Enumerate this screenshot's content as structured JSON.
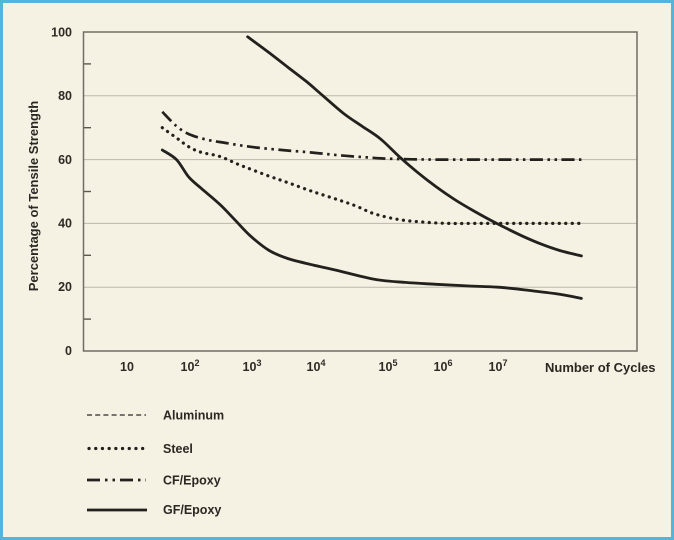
{
  "frame": {
    "border_color": "#57b3d9",
    "background_color": "#f5f1e3",
    "line_color": "#23211d"
  },
  "chart": {
    "y_axis_title": "Percentage of Tensile Strength",
    "x_axis_title": "Number of Cycles",
    "y_ticks": [
      "0",
      "20",
      "40",
      "60",
      "80",
      "100"
    ],
    "x_ticks": [
      {
        "base": "10",
        "sup": ""
      },
      {
        "base": "10",
        "sup": "2"
      },
      {
        "base": "10",
        "sup": "3"
      },
      {
        "base": "10",
        "sup": "4"
      },
      {
        "base": "10",
        "sup": "5"
      },
      {
        "base": "10",
        "sup": "6"
      },
      {
        "base": "10",
        "sup": "7"
      }
    ]
  },
  "legend": {
    "items": [
      {
        "label": "Aluminum",
        "swatch_style": "dashed-thin"
      },
      {
        "label": "Steel",
        "swatch_style": "dotted-bold"
      },
      {
        "label": "CF/Epoxy",
        "swatch_style": "dash-dot-dot"
      },
      {
        "label": "GF/Epoxy",
        "swatch_style": "solid"
      }
    ]
  },
  "chart_data": {
    "type": "line",
    "title": "",
    "xlabel": "Number of Cycles",
    "ylabel": "Percentage of Tensile Strength",
    "x_scale": "log10",
    "xlim_log10": [
      0.296,
      9.25
    ],
    "ylim": [
      0,
      100
    ],
    "x_tick_values": [
      10,
      100,
      1000,
      10000,
      100000,
      1000000,
      10000000
    ],
    "y_tick_values": [
      0,
      20,
      40,
      60,
      80,
      100
    ],
    "y_grid": [
      20,
      40,
      60,
      80
    ],
    "y_minor_ticks": [
      10,
      30,
      50,
      70,
      90
    ],
    "grid": "horizontal-only",
    "legend_position": "below-plot-left",
    "series": [
      {
        "name": "Aluminum",
        "plot_line_style": "solid",
        "legend_line_style": "dashed",
        "points_log10x_y": [
          [
            1.57,
            63
          ],
          [
            1.8,
            60
          ],
          [
            2.0,
            54.5
          ],
          [
            2.2,
            51
          ],
          [
            2.5,
            46
          ],
          [
            2.75,
            41
          ],
          [
            3.0,
            36
          ],
          [
            3.3,
            31.5
          ],
          [
            3.6,
            29
          ],
          [
            4.0,
            27
          ],
          [
            4.35,
            25.5
          ],
          [
            5.0,
            22.5
          ],
          [
            5.5,
            21.5
          ],
          [
            6.0,
            20.9
          ],
          [
            6.5,
            20.4
          ],
          [
            7.0,
            20
          ],
          [
            7.5,
            19
          ],
          [
            8.0,
            17.8
          ],
          [
            8.35,
            16.5
          ]
        ]
      },
      {
        "name": "Steel",
        "plot_line_style": "dotted",
        "legend_line_style": "dotted",
        "points_log10x_y": [
          [
            1.57,
            70
          ],
          [
            1.8,
            66.8
          ],
          [
            2.0,
            64
          ],
          [
            2.2,
            62.3
          ],
          [
            2.5,
            61
          ],
          [
            2.8,
            58.5
          ],
          [
            3.0,
            57
          ],
          [
            3.3,
            54.8
          ],
          [
            3.6,
            52.8
          ],
          [
            4.0,
            50
          ],
          [
            4.4,
            47.5
          ],
          [
            4.7,
            45.5
          ],
          [
            5.0,
            43
          ],
          [
            5.4,
            41.2
          ],
          [
            5.8,
            40.4
          ],
          [
            6.2,
            40
          ],
          [
            6.6,
            40
          ],
          [
            7.0,
            40
          ],
          [
            7.5,
            40
          ],
          [
            8.0,
            40
          ],
          [
            8.35,
            40
          ]
        ]
      },
      {
        "name": "CF/Epoxy",
        "plot_line_style": "dash-dot-dot",
        "legend_line_style": "dash-dot-dot",
        "points_log10x_y": [
          [
            1.57,
            75
          ],
          [
            1.8,
            70.5
          ],
          [
            2.0,
            68
          ],
          [
            2.3,
            66.2
          ],
          [
            2.6,
            65.2
          ],
          [
            3.0,
            64
          ],
          [
            3.5,
            63
          ],
          [
            4.0,
            62.2
          ],
          [
            4.4,
            61.4
          ],
          [
            4.8,
            60.8
          ],
          [
            5.2,
            60.3
          ],
          [
            5.6,
            60.1
          ],
          [
            6.0,
            60
          ],
          [
            6.5,
            60
          ],
          [
            7.0,
            60
          ],
          [
            7.5,
            60
          ],
          [
            8.0,
            60
          ],
          [
            8.35,
            60
          ]
        ]
      },
      {
        "name": "GF/Epoxy",
        "plot_line_style": "solid",
        "legend_line_style": "solid",
        "points_log10x_y": [
          [
            2.95,
            98.5
          ],
          [
            3.3,
            93.5
          ],
          [
            3.6,
            89
          ],
          [
            3.9,
            84.5
          ],
          [
            4.17,
            80
          ],
          [
            4.5,
            74.5
          ],
          [
            4.8,
            70.5
          ],
          [
            5.1,
            66.5
          ],
          [
            5.4,
            61
          ],
          [
            5.7,
            56
          ],
          [
            6.0,
            51.5
          ],
          [
            6.3,
            47.5
          ],
          [
            6.6,
            44
          ],
          [
            7.0,
            39.8
          ],
          [
            7.4,
            36
          ],
          [
            7.7,
            33.5
          ],
          [
            8.0,
            31.5
          ],
          [
            8.35,
            29.8
          ]
        ]
      }
    ]
  }
}
